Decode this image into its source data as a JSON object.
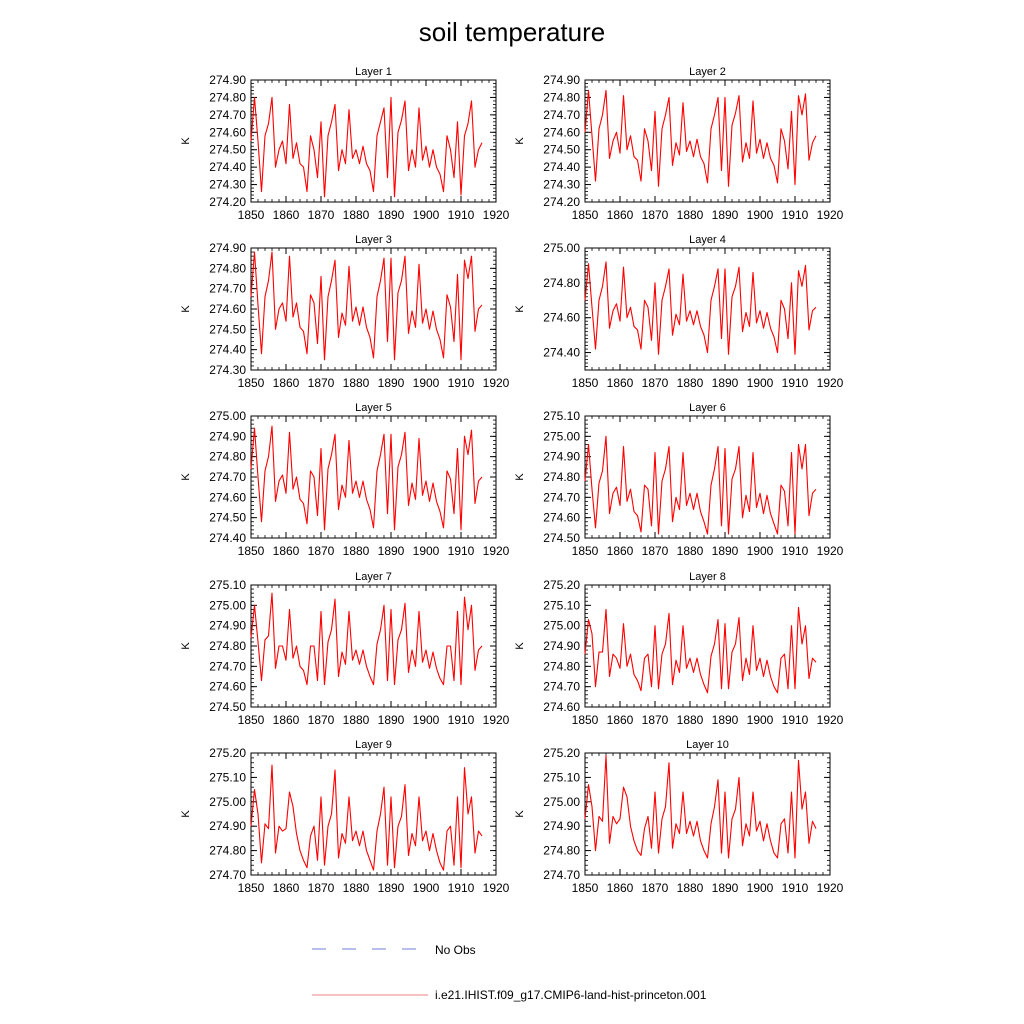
{
  "figure": {
    "title": "soil temperature",
    "legend": [
      {
        "label": "No Obs",
        "color": "#6f7fd6",
        "style": "dashed"
      },
      {
        "label": "i.e21.IHIST.f09_g17.CMIP6-land-hist-princeton.001",
        "color": "#f08080",
        "style": "solid"
      }
    ],
    "line_color": "#ff0000"
  },
  "chart_data": [
    {
      "type": "line",
      "title": "Layer 1",
      "ylabel": "K",
      "xlim": [
        1850,
        1920
      ],
      "ylim": [
        274.2,
        274.9
      ],
      "x_ticks": [
        "1850",
        "1860",
        "1870",
        "1880",
        "1890",
        "1900",
        "1910",
        "1920"
      ],
      "y_ticks": [
        "274.20",
        "274.30",
        "274.40",
        "274.50",
        "274.60",
        "274.70",
        "274.80",
        "274.90"
      ],
      "series": [
        {
          "x_start": 1850,
          "values": [
            274.55,
            274.8,
            274.55,
            274.26,
            274.58,
            274.65,
            274.8,
            274.4,
            274.5,
            274.55,
            274.42,
            274.76,
            274.45,
            274.54,
            274.42,
            274.4,
            274.26,
            274.58,
            274.5,
            274.34,
            274.66,
            274.23,
            274.58,
            274.66,
            274.76,
            274.38,
            274.5,
            274.42,
            274.73,
            274.45,
            274.5,
            274.42,
            274.52,
            274.42,
            274.38,
            274.26,
            274.58,
            274.66,
            274.74,
            274.34,
            274.8,
            274.23,
            274.6,
            274.67,
            274.78,
            274.38,
            274.5,
            274.4,
            274.74,
            274.44,
            274.52,
            274.4,
            274.5,
            274.4,
            274.36,
            274.26,
            274.58,
            274.5,
            274.34,
            274.66,
            274.24,
            274.58,
            274.65,
            274.78,
            274.4,
            274.5,
            274.54
          ]
        }
      ]
    },
    {
      "type": "line",
      "title": "Layer 2",
      "ylabel": "K",
      "xlim": [
        1850,
        1920
      ],
      "ylim": [
        274.2,
        274.9
      ],
      "x_ticks": [
        "1850",
        "1860",
        "1870",
        "1880",
        "1890",
        "1900",
        "1910",
        "1920"
      ],
      "y_ticks": [
        "274.20",
        "274.30",
        "274.40",
        "274.50",
        "274.60",
        "274.70",
        "274.80",
        "274.90"
      ],
      "series": [
        {
          "x_start": 1850,
          "values": [
            274.6,
            274.84,
            274.58,
            274.32,
            274.62,
            274.7,
            274.84,
            274.45,
            274.55,
            274.6,
            274.48,
            274.81,
            274.5,
            274.58,
            274.46,
            274.44,
            274.32,
            274.62,
            274.55,
            274.38,
            274.72,
            274.29,
            274.62,
            274.7,
            274.8,
            274.41,
            274.54,
            274.47,
            274.77,
            274.49,
            274.55,
            274.46,
            274.56,
            274.46,
            274.42,
            274.31,
            274.62,
            274.7,
            274.8,
            274.38,
            274.8,
            274.29,
            274.64,
            274.71,
            274.81,
            274.43,
            274.54,
            274.45,
            274.78,
            274.48,
            274.56,
            274.45,
            274.54,
            274.45,
            274.41,
            274.31,
            274.62,
            274.55,
            274.39,
            274.72,
            274.3,
            274.81,
            274.7,
            274.82,
            274.44,
            274.54,
            274.58
          ]
        }
      ]
    },
    {
      "type": "line",
      "title": "Layer 3",
      "ylabel": "K",
      "xlim": [
        1850,
        1920
      ],
      "ylim": [
        274.3,
        274.9
      ],
      "x_ticks": [
        "1850",
        "1860",
        "1870",
        "1880",
        "1890",
        "1900",
        "1910",
        "1920"
      ],
      "y_ticks": [
        "274.30",
        "274.40",
        "274.50",
        "274.60",
        "274.70",
        "274.80",
        "274.90"
      ],
      "series": [
        {
          "x_start": 1850,
          "values": [
            274.66,
            274.88,
            274.62,
            274.38,
            274.66,
            274.74,
            274.88,
            274.5,
            274.6,
            274.63,
            274.54,
            274.86,
            274.56,
            274.63,
            274.51,
            274.49,
            274.38,
            274.67,
            274.63,
            274.43,
            274.76,
            274.35,
            274.66,
            274.74,
            274.84,
            274.46,
            274.58,
            274.52,
            274.81,
            274.54,
            274.61,
            274.52,
            274.61,
            274.51,
            274.46,
            274.36,
            274.66,
            274.74,
            274.85,
            274.44,
            274.85,
            274.35,
            274.68,
            274.74,
            274.86,
            274.48,
            274.59,
            274.51,
            274.82,
            274.53,
            274.6,
            274.5,
            274.59,
            274.5,
            274.45,
            274.36,
            274.67,
            274.61,
            274.44,
            274.77,
            274.35,
            274.84,
            274.75,
            274.86,
            274.49,
            274.6,
            274.62
          ]
        }
      ]
    },
    {
      "type": "line",
      "title": "Layer 4",
      "ylabel": "K",
      "xlim": [
        1850,
        1920
      ],
      "ylim": [
        274.3,
        275.0
      ],
      "x_ticks": [
        "1850",
        "1860",
        "1870",
        "1880",
        "1890",
        "1900",
        "1910",
        "1920"
      ],
      "y_ticks": [
        "274.40",
        "274.60",
        "274.80",
        "275.00"
      ],
      "series": [
        {
          "x_start": 1850,
          "values": [
            274.7,
            274.91,
            274.66,
            274.42,
            274.7,
            274.78,
            274.92,
            274.54,
            274.64,
            274.68,
            274.58,
            274.89,
            274.6,
            274.66,
            274.55,
            274.53,
            274.42,
            274.7,
            274.66,
            274.47,
            274.8,
            274.39,
            274.7,
            274.78,
            274.88,
            274.5,
            274.62,
            274.56,
            274.85,
            274.58,
            274.64,
            274.56,
            274.64,
            274.55,
            274.5,
            274.4,
            274.7,
            274.78,
            274.88,
            274.48,
            274.88,
            274.39,
            274.72,
            274.78,
            274.89,
            274.52,
            274.63,
            274.55,
            274.86,
            274.57,
            274.64,
            274.54,
            274.63,
            274.54,
            274.49,
            274.4,
            274.7,
            274.65,
            274.48,
            274.8,
            274.39,
            274.87,
            274.78,
            274.9,
            274.53,
            274.64,
            274.66
          ]
        }
      ]
    },
    {
      "type": "line",
      "title": "Layer 5",
      "ylabel": "K",
      "xlim": [
        1850,
        1920
      ],
      "ylim": [
        274.4,
        275.0
      ],
      "x_ticks": [
        "1850",
        "1860",
        "1870",
        "1880",
        "1890",
        "1900",
        "1910",
        "1920"
      ],
      "y_ticks": [
        "274.40",
        "274.50",
        "274.60",
        "274.70",
        "274.80",
        "274.90",
        "275.00"
      ],
      "series": [
        {
          "x_start": 1850,
          "values": [
            274.74,
            274.94,
            274.7,
            274.48,
            274.73,
            274.8,
            274.95,
            274.58,
            274.68,
            274.71,
            274.62,
            274.92,
            274.64,
            274.7,
            274.59,
            274.57,
            274.47,
            274.73,
            274.7,
            274.51,
            274.84,
            274.44,
            274.74,
            274.81,
            274.91,
            274.54,
            274.66,
            274.6,
            274.88,
            274.62,
            274.68,
            274.6,
            274.68,
            274.59,
            274.54,
            274.45,
            274.73,
            274.81,
            274.91,
            274.52,
            274.91,
            274.44,
            274.75,
            274.81,
            274.92,
            274.56,
            274.67,
            274.59,
            274.89,
            274.61,
            274.68,
            274.58,
            274.67,
            274.58,
            274.53,
            274.45,
            274.73,
            274.69,
            274.52,
            274.84,
            274.44,
            274.9,
            274.81,
            274.93,
            274.57,
            274.68,
            274.7
          ]
        }
      ]
    },
    {
      "type": "line",
      "title": "Layer 6",
      "ylabel": "K",
      "xlim": [
        1850,
        1920
      ],
      "ylim": [
        274.5,
        275.1
      ],
      "x_ticks": [
        "1850",
        "1860",
        "1870",
        "1880",
        "1890",
        "1900",
        "1910",
        "1920"
      ],
      "y_ticks": [
        "274.50",
        "274.60",
        "274.70",
        "274.80",
        "274.90",
        "275.00",
        "275.10"
      ],
      "series": [
        {
          "x_start": 1850,
          "values": [
            274.78,
            274.96,
            274.74,
            274.55,
            274.77,
            274.83,
            275.0,
            274.62,
            274.72,
            274.75,
            274.66,
            274.95,
            274.68,
            274.74,
            274.63,
            274.61,
            274.53,
            274.76,
            274.74,
            274.56,
            274.92,
            274.52,
            274.78,
            274.84,
            274.95,
            274.58,
            274.7,
            274.64,
            274.92,
            274.66,
            274.72,
            274.64,
            274.72,
            274.63,
            274.58,
            274.52,
            274.76,
            274.84,
            274.95,
            274.56,
            274.94,
            274.52,
            274.79,
            274.84,
            274.95,
            274.6,
            274.71,
            274.63,
            274.92,
            274.65,
            274.72,
            274.62,
            274.71,
            274.62,
            274.57,
            274.52,
            274.76,
            274.73,
            274.56,
            274.92,
            274.52,
            274.96,
            274.84,
            274.96,
            274.61,
            274.72,
            274.74
          ]
        }
      ]
    },
    {
      "type": "line",
      "title": "Layer 7",
      "ylabel": "K",
      "xlim": [
        1850,
        1920
      ],
      "ylim": [
        274.5,
        275.1
      ],
      "x_ticks": [
        "1850",
        "1860",
        "1870",
        "1880",
        "1890",
        "1900",
        "1910",
        "1920"
      ],
      "y_ticks": [
        "274.50",
        "274.60",
        "274.70",
        "274.80",
        "274.90",
        "275.00",
        "275.10"
      ],
      "series": [
        {
          "x_start": 1850,
          "values": [
            274.84,
            275.0,
            274.82,
            274.63,
            274.83,
            274.85,
            275.06,
            274.69,
            274.8,
            274.8,
            274.73,
            274.98,
            274.74,
            274.8,
            274.7,
            274.68,
            274.61,
            274.8,
            274.8,
            274.63,
            274.97,
            274.61,
            274.82,
            274.88,
            275.03,
            274.65,
            274.77,
            274.71,
            274.97,
            274.73,
            274.78,
            274.71,
            274.78,
            274.7,
            274.65,
            274.61,
            274.81,
            274.88,
            275.0,
            274.63,
            274.98,
            274.61,
            274.83,
            274.88,
            275.01,
            274.67,
            274.78,
            274.7,
            274.97,
            274.72,
            274.78,
            274.69,
            274.77,
            274.69,
            274.64,
            274.61,
            274.8,
            274.8,
            274.63,
            274.97,
            274.61,
            275.04,
            274.88,
            275.0,
            274.68,
            274.78,
            274.8
          ]
        }
      ]
    },
    {
      "type": "line",
      "title": "Layer 8",
      "ylabel": "K",
      "xlim": [
        1850,
        1920
      ],
      "ylim": [
        274.6,
        275.2
      ],
      "x_ticks": [
        "1850",
        "1860",
        "1870",
        "1880",
        "1890",
        "1900",
        "1910",
        "1920"
      ],
      "y_ticks": [
        "274.60",
        "274.70",
        "274.80",
        "274.90",
        "275.00",
        "275.10",
        "275.20"
      ],
      "series": [
        {
          "x_start": 1850,
          "values": [
            274.86,
            275.03,
            274.96,
            274.7,
            274.87,
            274.87,
            275.08,
            274.75,
            274.86,
            274.84,
            274.79,
            275.01,
            274.8,
            274.86,
            274.76,
            274.73,
            274.68,
            274.84,
            274.86,
            274.7,
            275.0,
            274.69,
            274.86,
            274.91,
            275.06,
            274.71,
            274.83,
            274.77,
            275.0,
            274.79,
            274.84,
            274.77,
            274.84,
            274.76,
            274.71,
            274.67,
            274.85,
            274.91,
            275.03,
            274.69,
            275.01,
            274.69,
            274.87,
            274.91,
            275.04,
            274.73,
            274.84,
            274.76,
            275.0,
            274.78,
            274.84,
            274.75,
            274.83,
            274.75,
            274.7,
            274.67,
            274.84,
            274.86,
            274.69,
            275.0,
            274.69,
            275.09,
            274.91,
            275.0,
            274.74,
            274.84,
            274.82
          ]
        }
      ]
    },
    {
      "type": "line",
      "title": "Layer 9",
      "ylabel": "K",
      "xlim": [
        1850,
        1920
      ],
      "ylim": [
        274.7,
        275.2
      ],
      "x_ticks": [
        "1850",
        "1860",
        "1870",
        "1880",
        "1890",
        "1900",
        "1910",
        "1920"
      ],
      "y_ticks": [
        "274.70",
        "274.80",
        "274.90",
        "275.00",
        "275.10",
        "275.20"
      ],
      "series": [
        {
          "x_start": 1850,
          "values": [
            274.9,
            275.05,
            274.95,
            274.75,
            274.91,
            274.89,
            275.15,
            274.79,
            274.9,
            274.88,
            274.89,
            275.04,
            274.98,
            274.87,
            274.8,
            274.76,
            274.73,
            274.86,
            274.9,
            274.76,
            275.02,
            274.74,
            274.9,
            274.95,
            275.13,
            274.77,
            274.87,
            274.83,
            275.02,
            274.84,
            274.88,
            274.82,
            274.88,
            274.8,
            274.76,
            274.72,
            274.88,
            274.95,
            275.06,
            274.74,
            275.02,
            274.73,
            274.9,
            274.94,
            275.07,
            274.78,
            274.87,
            274.82,
            275.02,
            274.84,
            274.88,
            274.8,
            274.87,
            274.8,
            274.75,
            274.72,
            274.88,
            274.9,
            274.74,
            275.02,
            274.73,
            275.14,
            274.95,
            275.02,
            274.79,
            274.88,
            274.86
          ]
        }
      ]
    },
    {
      "type": "line",
      "title": "Layer 10",
      "ylabel": "K",
      "xlim": [
        1850,
        1920
      ],
      "ylim": [
        274.7,
        275.2
      ],
      "x_ticks": [
        "1850",
        "1860",
        "1870",
        "1880",
        "1890",
        "1900",
        "1910",
        "1920"
      ],
      "y_ticks": [
        "274.70",
        "274.80",
        "274.90",
        "275.00",
        "275.10",
        "275.20"
      ],
      "series": [
        {
          "x_start": 1850,
          "values": [
            274.93,
            275.07,
            274.98,
            274.8,
            274.94,
            274.92,
            275.19,
            274.83,
            274.94,
            274.91,
            274.93,
            275.06,
            275.02,
            274.9,
            274.84,
            274.8,
            274.78,
            274.89,
            274.94,
            274.81,
            275.04,
            274.79,
            274.93,
            274.98,
            275.16,
            274.81,
            274.91,
            274.87,
            275.04,
            274.87,
            274.92,
            274.86,
            274.92,
            274.84,
            274.8,
            274.77,
            274.91,
            274.98,
            275.09,
            274.79,
            275.04,
            274.77,
            274.93,
            274.97,
            275.1,
            274.82,
            274.91,
            274.86,
            275.04,
            274.88,
            274.92,
            274.84,
            274.91,
            274.84,
            274.79,
            274.77,
            274.91,
            274.93,
            274.79,
            275.04,
            274.77,
            275.17,
            274.97,
            275.04,
            274.83,
            274.92,
            274.89
          ]
        }
      ]
    }
  ]
}
